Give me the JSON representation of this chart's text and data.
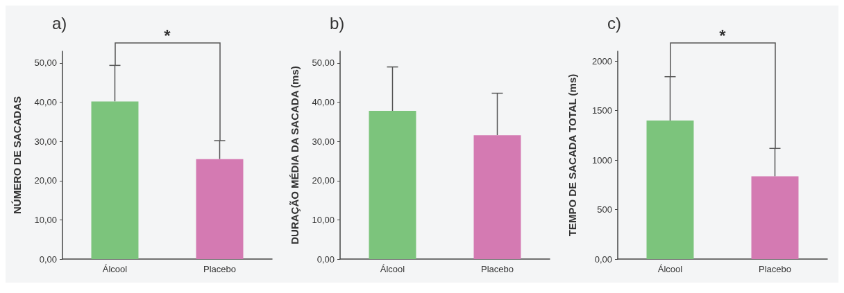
{
  "chart_data": [
    {
      "type": "bar",
      "title": "a)",
      "ylabel": "NÚMERO DE SACADAS",
      "categories": [
        "Álcool",
        "Placebo"
      ],
      "values": [
        40.2,
        25.5
      ],
      "colors": [
        "#7cc47c",
        "#d47ab2"
      ],
      "errors": [
        [
          40.2,
          49.4
        ],
        [
          25.5,
          30.2
        ]
      ],
      "ylim": [
        0,
        53
      ],
      "yticks": [
        {
          "value": 0,
          "label": "0,00"
        },
        {
          "value": 10,
          "label": "10,00"
        },
        {
          "value": 20,
          "label": "20,00"
        },
        {
          "value": 30,
          "label": "30,00"
        },
        {
          "value": 40,
          "label": "40,00"
        },
        {
          "value": 50,
          "label": "50,00"
        }
      ],
      "annotations": [
        "*"
      ],
      "grid": false
    },
    {
      "type": "bar",
      "title": "b)",
      "ylabel": "DURAÇÃO MÉDIA DA SACADA (ms)",
      "categories": [
        "Álcool",
        "Placebo"
      ],
      "values": [
        37.8,
        31.6
      ],
      "colors": [
        "#7cc47c",
        "#d47ab2"
      ],
      "errors": [
        [
          37.8,
          49
        ],
        [
          31.6,
          42.3
        ]
      ],
      "ylim": [
        0,
        53
      ],
      "yticks": [
        {
          "value": 0,
          "label": "0,00"
        },
        {
          "value": 10,
          "label": "10,00"
        },
        {
          "value": 20,
          "label": "20,00"
        },
        {
          "value": 30,
          "label": "30,00"
        },
        {
          "value": 40,
          "label": "40,00"
        },
        {
          "value": 50,
          "label": "50,00"
        }
      ],
      "grid": false
    },
    {
      "type": "bar",
      "title": "c)",
      "ylabel": "TEMPO DE SACADA TOTAL (ms)",
      "categories": [
        "Álcool",
        "Placebo"
      ],
      "values": [
        1400,
        836
      ],
      "colors": [
        "#7cc47c",
        "#d47ab2"
      ],
      "errors": [
        [
          1400,
          1843
        ],
        [
          836,
          1118
        ]
      ],
      "ylim": [
        0,
        2100
      ],
      "yticks": [
        {
          "value": 0,
          "label": "0,00"
        },
        500,
        1000,
        1500,
        2000
      ],
      "annotations": [
        "*"
      ],
      "grid": false
    }
  ]
}
